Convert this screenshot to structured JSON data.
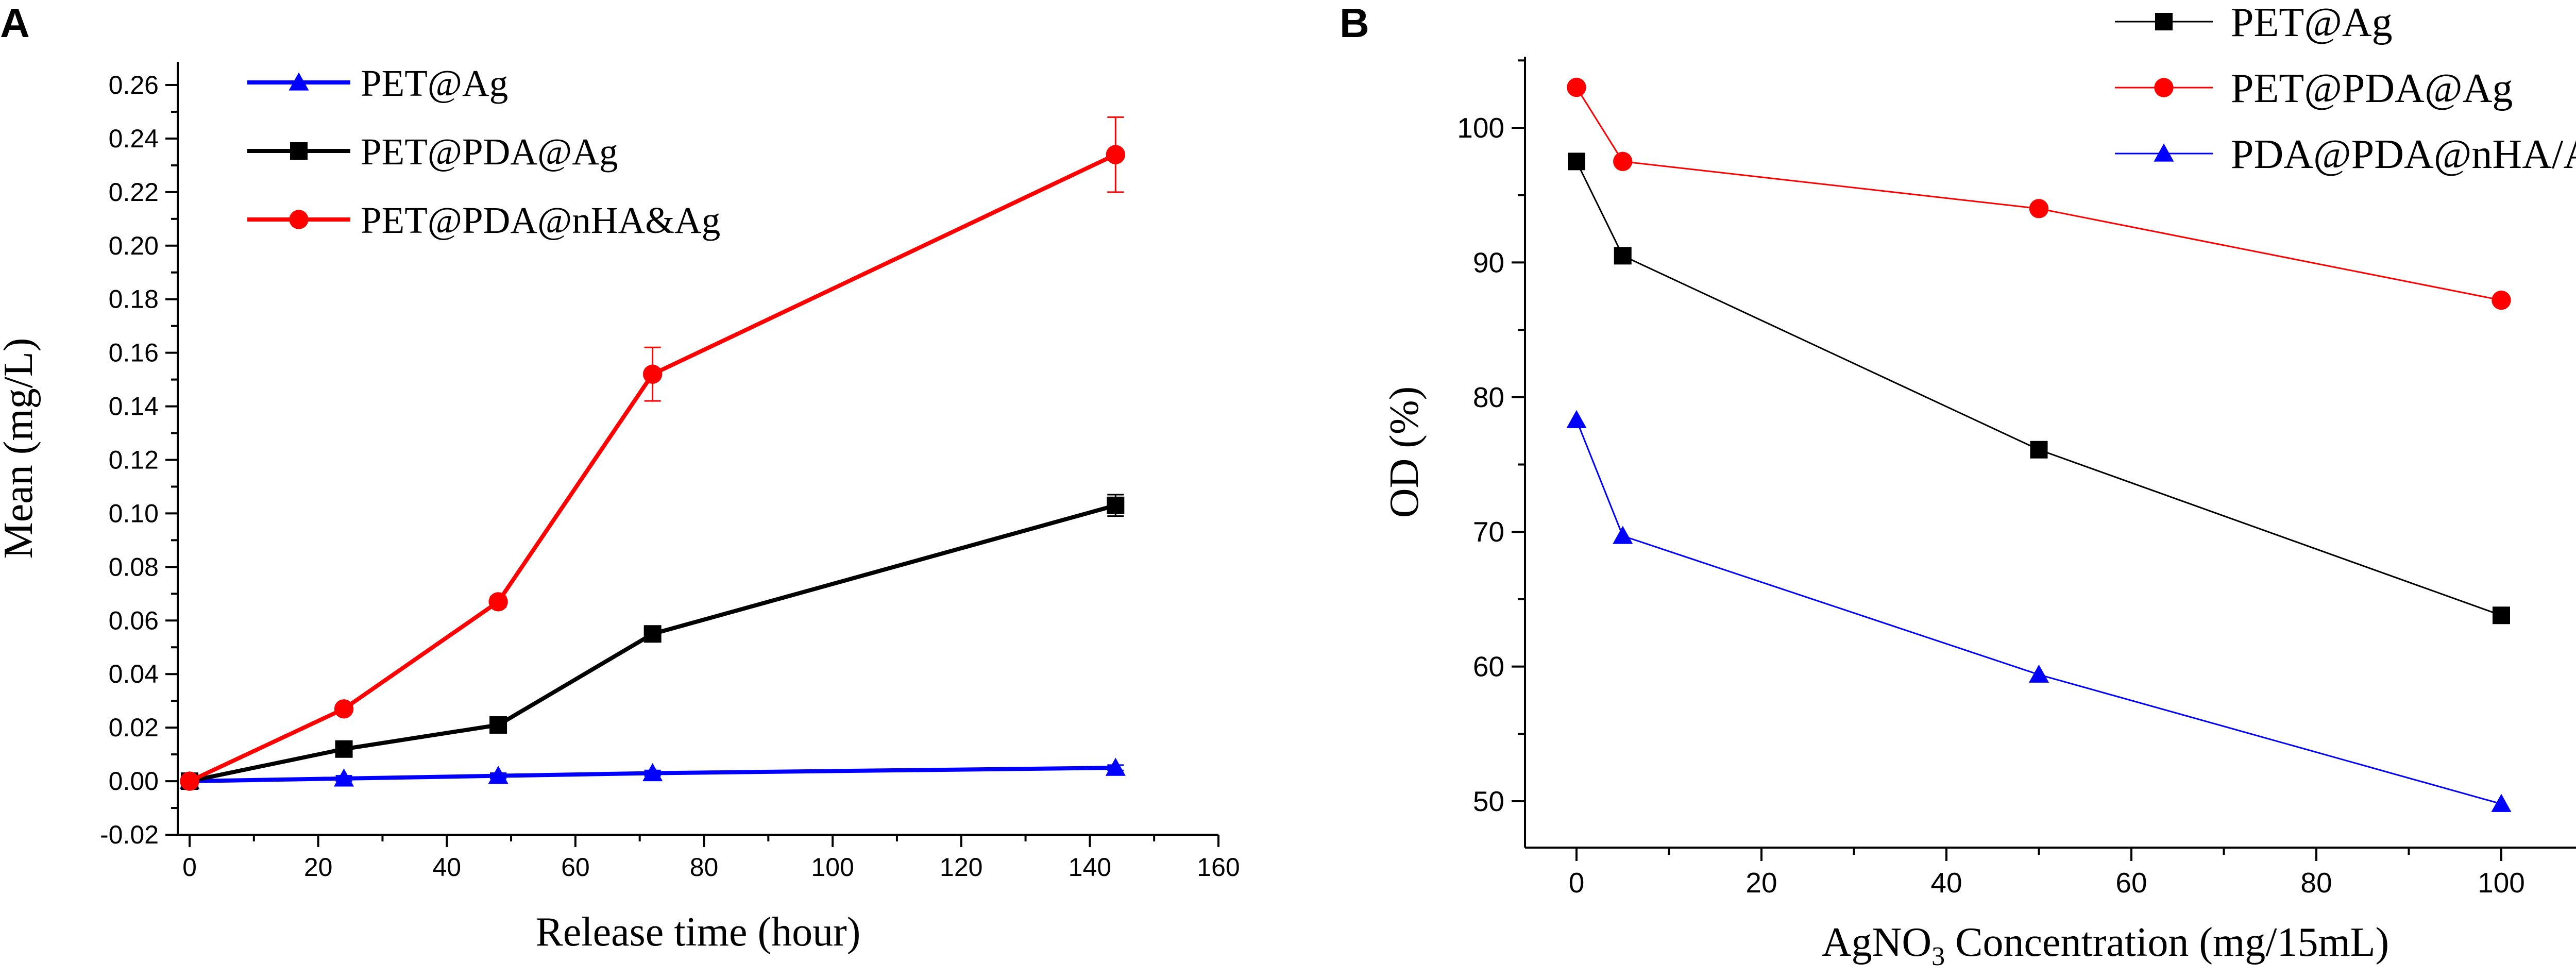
{
  "chart_data": [
    {
      "panel": "A",
      "type": "line",
      "xlabel": "Release time (hour)",
      "ylabel": "Mean (mg/L)",
      "xlim": [
        0,
        160
      ],
      "ylim": [
        -0.02,
        0.26
      ],
      "xticks": [
        0,
        20,
        40,
        60,
        80,
        100,
        120,
        140,
        160
      ],
      "yticks": [
        "-0.02",
        "0.00",
        "0.02",
        "0.04",
        "0.06",
        "0.08",
        "0.10",
        "0.12",
        "0.14",
        "0.16",
        "0.18",
        "0.20",
        "0.22",
        "0.24",
        "0.26"
      ],
      "legend_position": "top-left",
      "grid": false,
      "series": [
        {
          "name": "PET@Ag",
          "color": "#0000ff",
          "marker": "triangle",
          "x": [
            0,
            24,
            48,
            72,
            144
          ],
          "y": [
            0.0,
            0.001,
            0.002,
            0.003,
            0.005
          ],
          "error": [
            0,
            0.001,
            0.001,
            0.001,
            0.001
          ]
        },
        {
          "name": "PET@PDA@Ag",
          "color": "#000000",
          "marker": "square",
          "x": [
            0,
            24,
            48,
            72,
            144
          ],
          "y": [
            0.0,
            0.012,
            0.021,
            0.055,
            0.103
          ],
          "error": [
            0,
            0.001,
            0.002,
            0.001,
            0.004
          ]
        },
        {
          "name": "PET@PDA@nHA&Ag",
          "color": "#ff0000",
          "marker": "circle",
          "x": [
            0,
            24,
            48,
            72,
            144
          ],
          "y": [
            0.0,
            0.027,
            0.067,
            0.152,
            0.234
          ],
          "error": [
            0,
            0.001,
            0.002,
            0.01,
            0.014
          ]
        }
      ]
    },
    {
      "panel": "B",
      "type": "line",
      "xlabel_main": "AgNO",
      "xlabel_sub": "3",
      "xlabel_rest": " Concentration (mg/15mL)",
      "ylabel": "OD (%)",
      "xlim": [
        -5,
        105
      ],
      "ylim": [
        48,
        105
      ],
      "xticks": [
        0,
        20,
        40,
        60,
        80,
        100
      ],
      "yticks": [
        50,
        60,
        70,
        80,
        90,
        100
      ],
      "legend_position": "top-right",
      "grid": false,
      "series": [
        {
          "name": "PET@Ag",
          "color": "#000000",
          "marker": "square",
          "x": [
            0,
            5,
            50,
            100
          ],
          "y": [
            97.5,
            90.5,
            76.1,
            63.8
          ]
        },
        {
          "name": "PET@PDA@Ag",
          "color": "#ff0000",
          "marker": "circle",
          "x": [
            0,
            5,
            50,
            100
          ],
          "y": [
            103.0,
            97.5,
            94.0,
            87.2
          ]
        },
        {
          "name": "PDA@PDA@nHA/Ag",
          "color": "#0000ff",
          "marker": "triangle",
          "x": [
            0,
            5,
            50,
            100
          ],
          "y": [
            78.3,
            69.7,
            59.4,
            49.8
          ]
        }
      ]
    }
  ],
  "panels": {
    "a_letter": "A",
    "b_letter": "B"
  }
}
